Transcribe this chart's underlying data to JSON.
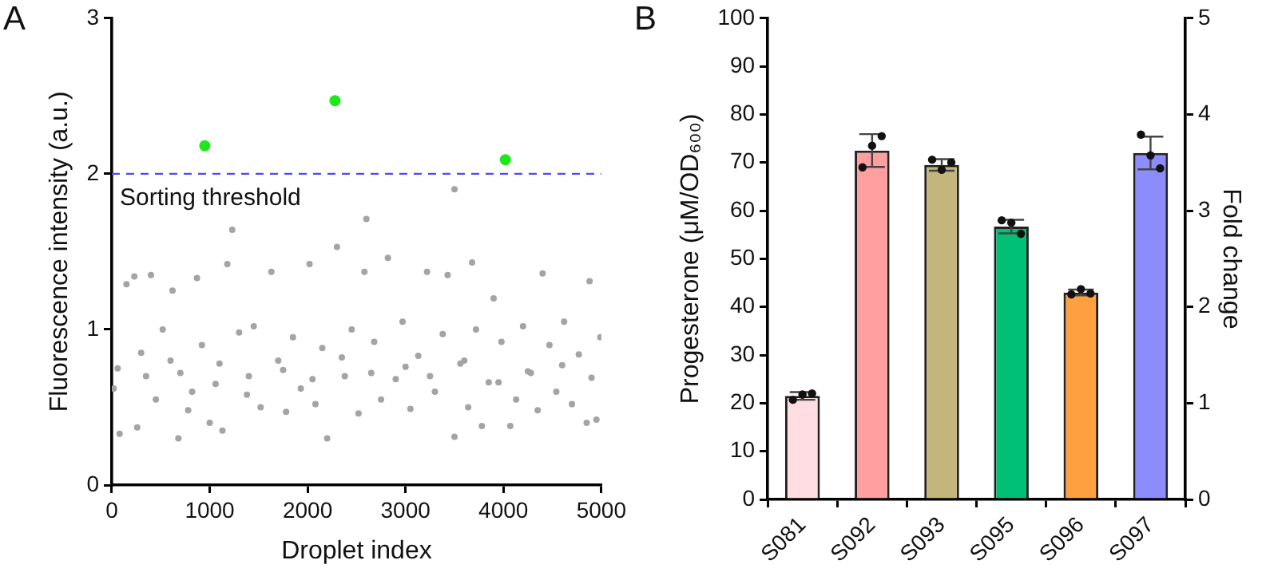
{
  "chart_data": [
    {
      "type": "scatter",
      "annotations": [
        "A"
      ],
      "xlabel": "Droplet index",
      "ylabel": "Fluorescence intensity (a.u.)",
      "xlim": [
        0,
        5000
      ],
      "ylim": [
        0,
        3
      ],
      "xticks": [
        0,
        1000,
        2000,
        3000,
        4000,
        5000
      ],
      "yticks": [
        0,
        1,
        2,
        3
      ],
      "grid": false,
      "legend": false,
      "marker": "circle",
      "ref_lines": [
        {
          "axis": "y",
          "value": 2,
          "label": "Sorting threshold",
          "color": "#4a4aff",
          "line_style": "dashed"
        }
      ],
      "series": [
        {
          "color": "#a3a3a8",
          "x": [
            20,
            80,
            150,
            230,
            260,
            300,
            400,
            450,
            520,
            620,
            680,
            700,
            780,
            870,
            920,
            1000,
            1060,
            1130,
            1180,
            1230,
            1300,
            1380,
            1450,
            1520,
            1630,
            1700,
            1780,
            1850,
            1930,
            2020,
            2080,
            2150,
            2200,
            2300,
            2380,
            2450,
            2520,
            2580,
            2600,
            2680,
            2750,
            2820,
            2900,
            2970,
            3050,
            3130,
            3220,
            3300,
            3380,
            3430,
            3500,
            3500,
            3560,
            3640,
            3680,
            3720,
            3780,
            3850,
            3900,
            3980,
            4070,
            4130,
            4200,
            4280,
            4350,
            4400,
            4470,
            4540,
            4620,
            4700,
            4770,
            4850,
            4880,
            4950,
            4990,
            60,
            350,
            600,
            820,
            1100,
            1400,
            1750,
            2050,
            2350,
            2650,
            3000,
            3250,
            3600,
            3950,
            4250,
            4600,
            4900
          ],
          "values": [
            0.62,
            0.33,
            1.29,
            1.34,
            0.37,
            0.85,
            1.35,
            0.55,
            1.0,
            1.25,
            0.3,
            0.72,
            0.48,
            1.33,
            0.9,
            0.4,
            0.65,
            0.35,
            1.42,
            1.64,
            0.98,
            0.58,
            1.02,
            0.5,
            1.37,
            0.8,
            0.47,
            0.95,
            0.62,
            1.42,
            0.52,
            0.88,
            0.3,
            1.53,
            0.7,
            1.0,
            0.46,
            1.37,
            1.71,
            0.92,
            0.55,
            1.46,
            0.68,
            1.05,
            0.49,
            0.83,
            1.37,
            0.6,
            0.97,
            1.35,
            1.9,
            0.31,
            0.78,
            0.5,
            1.43,
            1.0,
            0.38,
            0.66,
            1.2,
            0.92,
            0.38,
            0.55,
            1.02,
            0.72,
            0.48,
            1.36,
            0.9,
            0.6,
            1.05,
            0.52,
            0.84,
            0.4,
            1.31,
            0.42,
            0.95,
            0.75,
            0.7,
            0.8,
            0.6,
            0.78,
            0.7,
            0.74,
            0.68,
            0.82,
            0.72,
            0.76,
            0.7,
            0.8,
            0.66,
            0.73,
            0.77,
            0.69
          ]
        },
        {
          "color": "#1de81d",
          "x": [
            950,
            2280,
            4020
          ],
          "values": [
            2.18,
            2.47,
            2.09
          ]
        }
      ]
    },
    {
      "type": "bar",
      "annotations": [
        "B"
      ],
      "categories": [
        "S081",
        "S092",
        "S093",
        "S095",
        "S096",
        "S097"
      ],
      "ylabel": "Progesterone (μM/OD₆₀₀)",
      "y2label": "Fold change",
      "ylim": [
        0,
        100
      ],
      "yticks": [
        0,
        10,
        20,
        30,
        40,
        50,
        60,
        70,
        80,
        90,
        100
      ],
      "y2lim": [
        0,
        5
      ],
      "y2ticks": [
        0,
        1,
        2,
        3,
        4,
        5
      ],
      "grid": false,
      "legend": false,
      "marker": "circle",
      "series": [
        {
          "type": "bar",
          "colors": [
            "#ffdde0",
            "#ff9f9f",
            "#c2b67c",
            "#00c076",
            "#ffa040",
            "#8c8cff"
          ],
          "values": [
            21.5,
            72.5,
            69.5,
            56.7,
            43,
            72
          ],
          "errors": [
            0.8,
            3.4,
            1.2,
            1.4,
            0.6,
            3.4
          ]
        },
        {
          "type": "scatter",
          "color": "#111111",
          "x": [
            "S081",
            "S081",
            "S081",
            "S092",
            "S092",
            "S092",
            "S093",
            "S093",
            "S093",
            "S095",
            "S095",
            "S095",
            "S096",
            "S096",
            "S096",
            "S097",
            "S097",
            "S097"
          ],
          "values": [
            20.7,
            21.8,
            22.0,
            69,
            73.5,
            75.5,
            70.6,
            68.5,
            70.0,
            58,
            57.5,
            55.2,
            42.6,
            43.7,
            42.8,
            75.8,
            71.5,
            68.8
          ]
        }
      ]
    }
  ]
}
